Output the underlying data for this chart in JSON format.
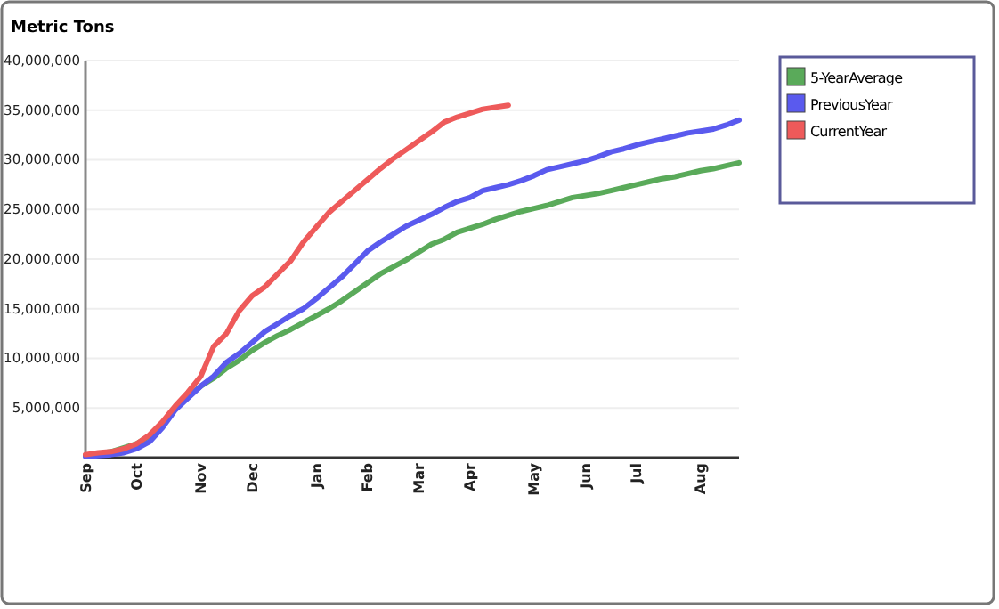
{
  "chart_data": {
    "type": "line",
    "ylabel": "Metric Tons",
    "categories": [
      "Sep",
      null,
      null,
      null,
      "Oct",
      null,
      null,
      null,
      null,
      "Nov",
      null,
      null,
      null,
      "Dec",
      null,
      null,
      null,
      null,
      "Jan",
      null,
      null,
      null,
      "Feb",
      null,
      null,
      null,
      "Mar",
      null,
      null,
      null,
      "Apr",
      null,
      null,
      null,
      null,
      "May",
      null,
      null,
      null,
      "Jun",
      null,
      null,
      null,
      "Jul",
      null,
      null,
      null,
      null,
      "Aug",
      null,
      null,
      null
    ],
    "ylim": [
      0,
      40000000
    ],
    "yticks": [
      {
        "value": 0,
        "label": null
      },
      {
        "value": 5000000,
        "label": "5,000,000"
      },
      {
        "value": 10000000,
        "label": "10,000,000"
      },
      {
        "value": 15000000,
        "label": "15,000,000"
      },
      {
        "value": 20000000,
        "label": "20,000,000"
      },
      {
        "value": 25000000,
        "label": "25,000,000"
      },
      {
        "value": 30000000,
        "label": "30,000,000"
      },
      {
        "value": 35000000,
        "label": "35,000,000"
      },
      {
        "value": 40000000,
        "label": "40,000,000"
      }
    ],
    "grid": "y",
    "legend": "right",
    "marker": "none",
    "line_style": "solid",
    "series": [
      {
        "name": "5-YearAverage",
        "color": "#5aaa5a",
        "values": [
          200000,
          400000,
          600000,
          1000000,
          1400000,
          2200000,
          3500000,
          5000000,
          6100000,
          7200000,
          8000000,
          9000000,
          9800000,
          10800000,
          11600000,
          12300000,
          12900000,
          13600000,
          14300000,
          15000000,
          15800000,
          16700000,
          17600000,
          18500000,
          19200000,
          19900000,
          20700000,
          21500000,
          22000000,
          22700000,
          23100000,
          23500000,
          24000000,
          24400000,
          24800000,
          25100000,
          25400000,
          25800000,
          26200000,
          26400000,
          26600000,
          26900000,
          27200000,
          27500000,
          27800000,
          28100000,
          28300000,
          28600000,
          28900000,
          29100000,
          29400000,
          29700000
        ]
      },
      {
        "name": "PreviousYear",
        "color": "#5a5aee",
        "values": [
          100000,
          200000,
          300000,
          500000,
          900000,
          1600000,
          3000000,
          4800000,
          6000000,
          7200000,
          8200000,
          9600000,
          10500000,
          11600000,
          12700000,
          13500000,
          14300000,
          15000000,
          16000000,
          17100000,
          18200000,
          19500000,
          20800000,
          21700000,
          22500000,
          23300000,
          23900000,
          24500000,
          25200000,
          25800000,
          26200000,
          26900000,
          27200000,
          27500000,
          27900000,
          28400000,
          29000000,
          29300000,
          29600000,
          29900000,
          30300000,
          30800000,
          31100000,
          31500000,
          31800000,
          32100000,
          32400000,
          32700000,
          32900000,
          33100000,
          33500000,
          34000000
        ]
      },
      {
        "name": "CurrentYear",
        "color": "#ee5a5a",
        "values": [
          300000,
          500000,
          600000,
          900000,
          1400000,
          2300000,
          3600000,
          5200000,
          6600000,
          8200000,
          11200000,
          12500000,
          14800000,
          16300000,
          17200000,
          18500000,
          19800000,
          21700000,
          23200000,
          24700000,
          25800000,
          26900000,
          28000000,
          29100000,
          30100000,
          31000000,
          31900000,
          32800000,
          33800000,
          34300000,
          34700000,
          35100000,
          35300000,
          35500000,
          null,
          null,
          null,
          null,
          null,
          null,
          null,
          null,
          null,
          null,
          null,
          null,
          null,
          null,
          null,
          null,
          null,
          null
        ]
      }
    ]
  }
}
